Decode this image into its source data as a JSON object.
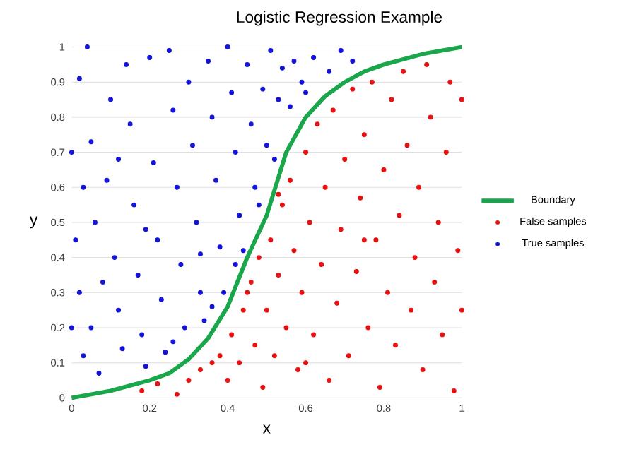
{
  "chart_data": {
    "type": "scatter",
    "title": "Logistic Regression Example",
    "xlabel": "x",
    "ylabel": "y",
    "xlim": [
      0,
      1
    ],
    "ylim": [
      0,
      1
    ],
    "xticks": [
      0,
      0.2,
      0.4,
      0.6,
      0.8,
      1
    ],
    "yticks": [
      0,
      0.1,
      0.2,
      0.3,
      0.4,
      0.5,
      0.6,
      0.7,
      0.8,
      0.9,
      1
    ],
    "grid": "y",
    "legend": "right",
    "series": [
      {
        "name": "Boundary",
        "type": "line",
        "line_style": "solid",
        "color": "#1aa64a",
        "x": [
          0,
          0.1,
          0.2,
          0.25,
          0.3,
          0.35,
          0.4,
          0.45,
          0.5,
          0.55,
          0.6,
          0.65,
          0.7,
          0.75,
          0.8,
          0.9,
          1
        ],
        "values": [
          0,
          0.02,
          0.05,
          0.07,
          0.11,
          0.17,
          0.26,
          0.4,
          0.52,
          0.7,
          0.8,
          0.86,
          0.9,
          0.93,
          0.95,
          0.98,
          1
        ]
      },
      {
        "name": "False samples",
        "color": "#e81010",
        "x": [
          0.18,
          0.22,
          0.27,
          0.3,
          0.33,
          0.36,
          0.38,
          0.4,
          0.41,
          0.43,
          0.44,
          0.46,
          0.47,
          0.48,
          0.49,
          0.5,
          0.51,
          0.52,
          0.53,
          0.54,
          0.55,
          0.56,
          0.57,
          0.58,
          0.59,
          0.6,
          0.61,
          0.62,
          0.63,
          0.64,
          0.65,
          0.66,
          0.67,
          0.68,
          0.69,
          0.7,
          0.71,
          0.72,
          0.73,
          0.74,
          0.75,
          0.76,
          0.77,
          0.78,
          0.79,
          0.8,
          0.81,
          0.82,
          0.83,
          0.84,
          0.85,
          0.86,
          0.87,
          0.88,
          0.89,
          0.9,
          0.91,
          0.92,
          0.93,
          0.94,
          0.95,
          0.96,
          0.97,
          0.98,
          0.99,
          1,
          1,
          0.53,
          0.45,
          0.6,
          0.75
        ],
        "values": [
          0.02,
          0.04,
          0.01,
          0.05,
          0.08,
          0.1,
          0.12,
          0.05,
          0.18,
          0.1,
          0.25,
          0.33,
          0.15,
          0.4,
          0.03,
          0.25,
          0.45,
          0.12,
          0.35,
          0.55,
          0.2,
          0.62,
          0.42,
          0.08,
          0.3,
          0.7,
          0.5,
          0.18,
          0.78,
          0.38,
          0.6,
          0.05,
          0.82,
          0.27,
          0.48,
          0.68,
          0.12,
          0.88,
          0.36,
          0.57,
          0.75,
          0.2,
          0.9,
          0.45,
          0.03,
          0.65,
          0.3,
          0.85,
          0.15,
          0.52,
          0.93,
          0.72,
          0.25,
          0.4,
          0.6,
          0.08,
          0.95,
          0.8,
          0.33,
          0.5,
          0.18,
          0.7,
          0.9,
          0.02,
          0.42,
          0.25,
          0.85,
          0.58,
          0.3,
          0.1,
          0.45
        ]
      },
      {
        "name": "True samples",
        "color": "#1414d8",
        "x": [
          0.02,
          0.04,
          0.05,
          0.03,
          0.01,
          0.06,
          0.02,
          0.05,
          0.03,
          0.07,
          0.1,
          0.09,
          0.11,
          0.12,
          0.13,
          0.14,
          0.15,
          0.16,
          0.17,
          0.18,
          0.19,
          0.2,
          0.21,
          0.22,
          0.23,
          0.24,
          0.25,
          0.26,
          0.27,
          0.28,
          0.29,
          0.3,
          0.31,
          0.32,
          0.33,
          0.34,
          0.35,
          0.36,
          0.37,
          0.38,
          0.39,
          0.4,
          0.41,
          0.42,
          0.43,
          0.44,
          0.45,
          0.46,
          0.47,
          0.48,
          0.49,
          0.5,
          0.51,
          0.52,
          0.53,
          0.54,
          0.56,
          0.57,
          0.59,
          0.6,
          0.62,
          0.66,
          0.69,
          0.72,
          0.08,
          0.12,
          0.19,
          0.26,
          0.33,
          0.36,
          0,
          0,
          0.42
        ],
        "values": [
          0.91,
          1,
          0.73,
          0.6,
          0.45,
          0.5,
          0.3,
          0.2,
          0.12,
          0.07,
          0.85,
          0.62,
          0.4,
          0.25,
          0.14,
          0.95,
          0.78,
          0.55,
          0.35,
          0.18,
          0.09,
          0.97,
          0.67,
          0.45,
          0.28,
          0.13,
          0.99,
          0.82,
          0.6,
          0.38,
          0.2,
          0.9,
          0.72,
          0.5,
          0.3,
          0.22,
          0.96,
          0.8,
          0.62,
          0.43,
          0.3,
          1,
          0.87,
          0.7,
          0.52,
          0.42,
          0.95,
          0.78,
          0.6,
          0.55,
          0.88,
          0.72,
          0.99,
          0.68,
          0.85,
          0.94,
          0.83,
          0.96,
          0.9,
          0.87,
          0.97,
          0.93,
          0.99,
          0.96,
          0.33,
          0.68,
          0.48,
          0.16,
          0.41,
          0.26,
          0.2,
          0.7,
          0.38
        ]
      }
    ]
  }
}
